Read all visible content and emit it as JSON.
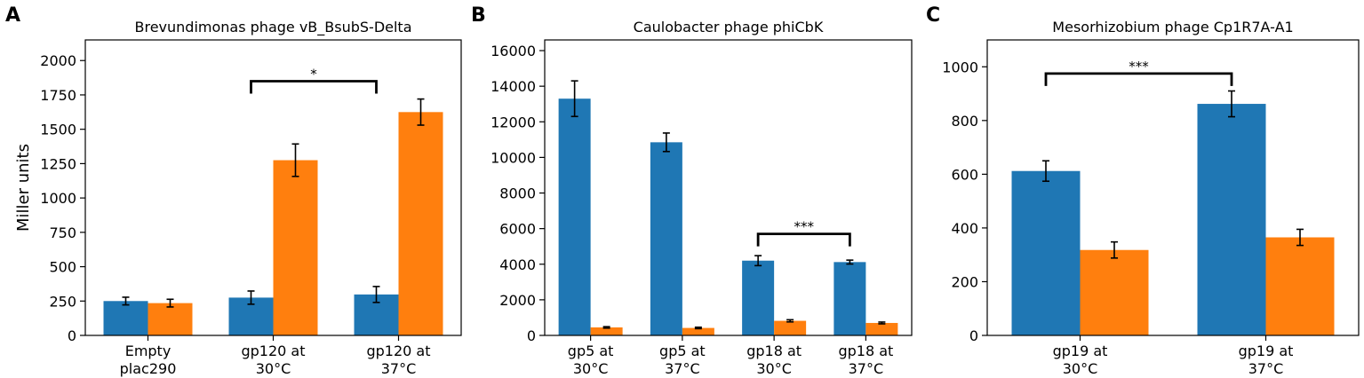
{
  "colors": {
    "series1": "#1f77b4",
    "series2": "#ff7f0e",
    "frame": "#000000"
  },
  "chart_data": [
    {
      "type": "bar",
      "panel": "A",
      "title": "Brevundimonas phage vB_BsubS-Delta",
      "ylabel": "Miller units",
      "ylim": [
        0,
        2150
      ],
      "yticks": [
        0,
        250,
        500,
        750,
        1000,
        1250,
        1500,
        1750,
        2000
      ],
      "categories": [
        [
          "Empty",
          "plac290"
        ],
        [
          "gp120 at",
          "30°C"
        ],
        [
          "gp120 at",
          "37°C"
        ]
      ],
      "series": [
        {
          "values": [
            250,
            275,
            298
          ],
          "errors": [
            28,
            48,
            58
          ]
        },
        {
          "values": [
            235,
            1275,
            1625
          ],
          "errors": [
            28,
            118,
            95
          ]
        }
      ],
      "significance": [
        {
          "label": "*",
          "from": [
            1,
            0
          ],
          "to": [
            2,
            0
          ],
          "y": 1850
        }
      ]
    },
    {
      "type": "bar",
      "panel": "B",
      "title": "Caulobacter phage phiCbK",
      "ylabel": "",
      "ylim": [
        0,
        16600
      ],
      "yticks": [
        0,
        2000,
        4000,
        6000,
        8000,
        10000,
        12000,
        14000,
        16000
      ],
      "categories": [
        [
          "gp5 at",
          "30°C"
        ],
        [
          "gp5 at",
          "37°C"
        ],
        [
          "gp18 at",
          "30°C"
        ],
        [
          "gp18 at",
          "37°C"
        ]
      ],
      "series": [
        {
          "values": [
            13300,
            10850,
            4200,
            4120
          ],
          "errors": [
            1000,
            520,
            280,
            110
          ]
        },
        {
          "values": [
            450,
            420,
            820,
            700
          ],
          "errors": [
            40,
            40,
            60,
            50
          ]
        }
      ],
      "significance": [
        {
          "label": "***",
          "from": [
            2,
            0
          ],
          "to": [
            3,
            0
          ],
          "y": 5700
        }
      ]
    },
    {
      "type": "bar",
      "panel": "C",
      "title": "Mesorhizobium phage Cp1R7A-A1",
      "ylabel": "",
      "ylim": [
        0,
        1100
      ],
      "yticks": [
        0,
        200,
        400,
        600,
        800,
        1000
      ],
      "categories": [
        [
          "gp19 at",
          "30°C"
        ],
        [
          "gp19 at",
          "37°C"
        ]
      ],
      "series": [
        {
          "values": [
            612,
            862
          ],
          "errors": [
            38,
            48
          ]
        },
        {
          "values": [
            318,
            365
          ],
          "errors": [
            30,
            30
          ]
        }
      ],
      "significance": [
        {
          "label": "***",
          "from": [
            0,
            0
          ],
          "to": [
            1,
            0
          ],
          "y": 975
        }
      ]
    }
  ]
}
